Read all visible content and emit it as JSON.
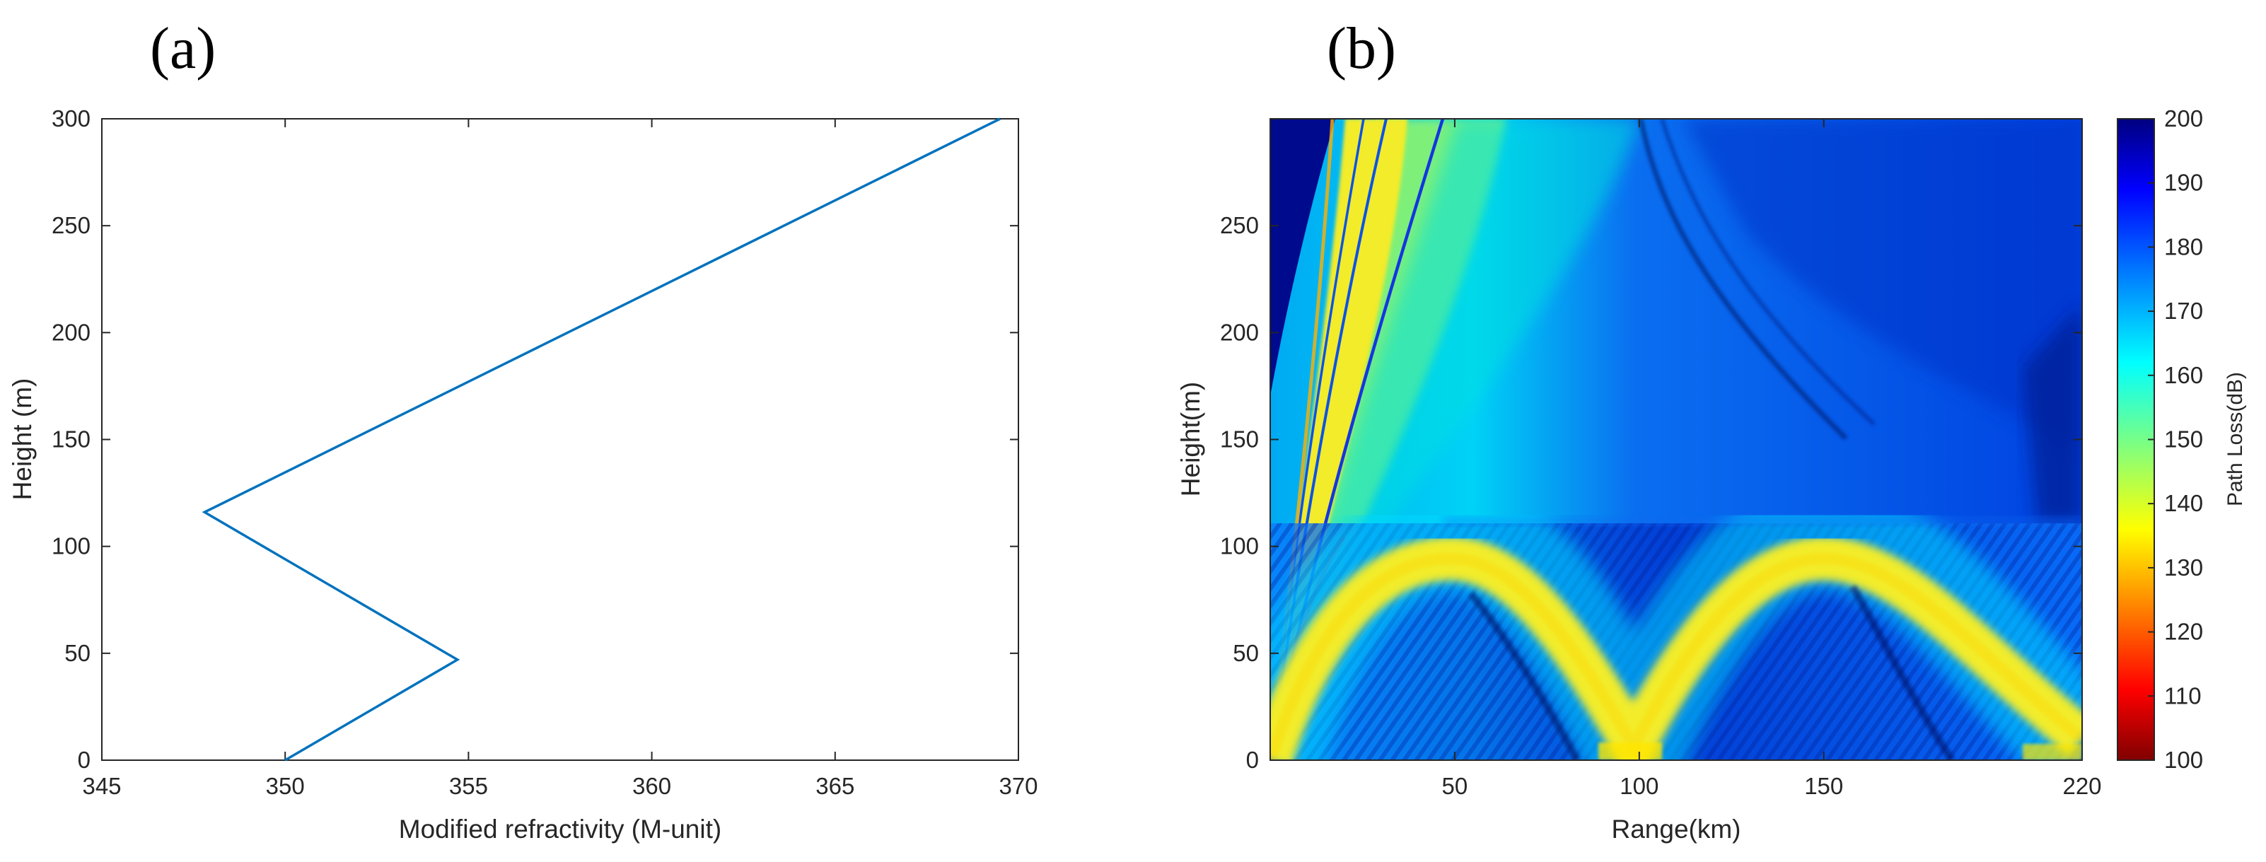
{
  "chart_data": [
    {
      "type": "line",
      "panel_label": "(a)",
      "xlabel": "Modified refractivity (M-unit)",
      "ylabel": "Height (m)",
      "xlim": [
        345,
        370
      ],
      "ylim": [
        0,
        300
      ],
      "xticks": [
        "345",
        "350",
        "355",
        "360",
        "365",
        "370"
      ],
      "yticks": [
        "0",
        "50",
        "100",
        "150",
        "200",
        "250",
        "300"
      ],
      "grid": false,
      "series": [
        {
          "color": "#0072BD",
          "x": [
            350.0,
            354.7,
            347.8,
            369.5
          ],
          "y": [
            0,
            47,
            116,
            300
          ]
        }
      ]
    },
    {
      "type": "heatmap",
      "panel_label": "(b)",
      "xlabel": "Range(km)",
      "ylabel": "Height(m)",
      "xlim": [
        0,
        220
      ],
      "ylim": [
        0,
        300
      ],
      "xticks": [
        "50",
        "100",
        "150",
        "220"
      ],
      "yticks": [
        "0",
        "50",
        "100",
        "150",
        "200",
        "250"
      ],
      "colorbar": {
        "label": "Path Loss(dB)",
        "range": [
          100,
          200
        ],
        "ticks": [
          "100",
          "110",
          "120",
          "130",
          "140",
          "150",
          "160",
          "170",
          "180",
          "190",
          "200"
        ],
        "colormap": "jet-reversed"
      },
      "duct_top_m": 116,
      "duct_hop_peaks_km": [
        55,
        165
      ],
      "duct_hop_minima_km": [
        110,
        218
      ]
    }
  ]
}
